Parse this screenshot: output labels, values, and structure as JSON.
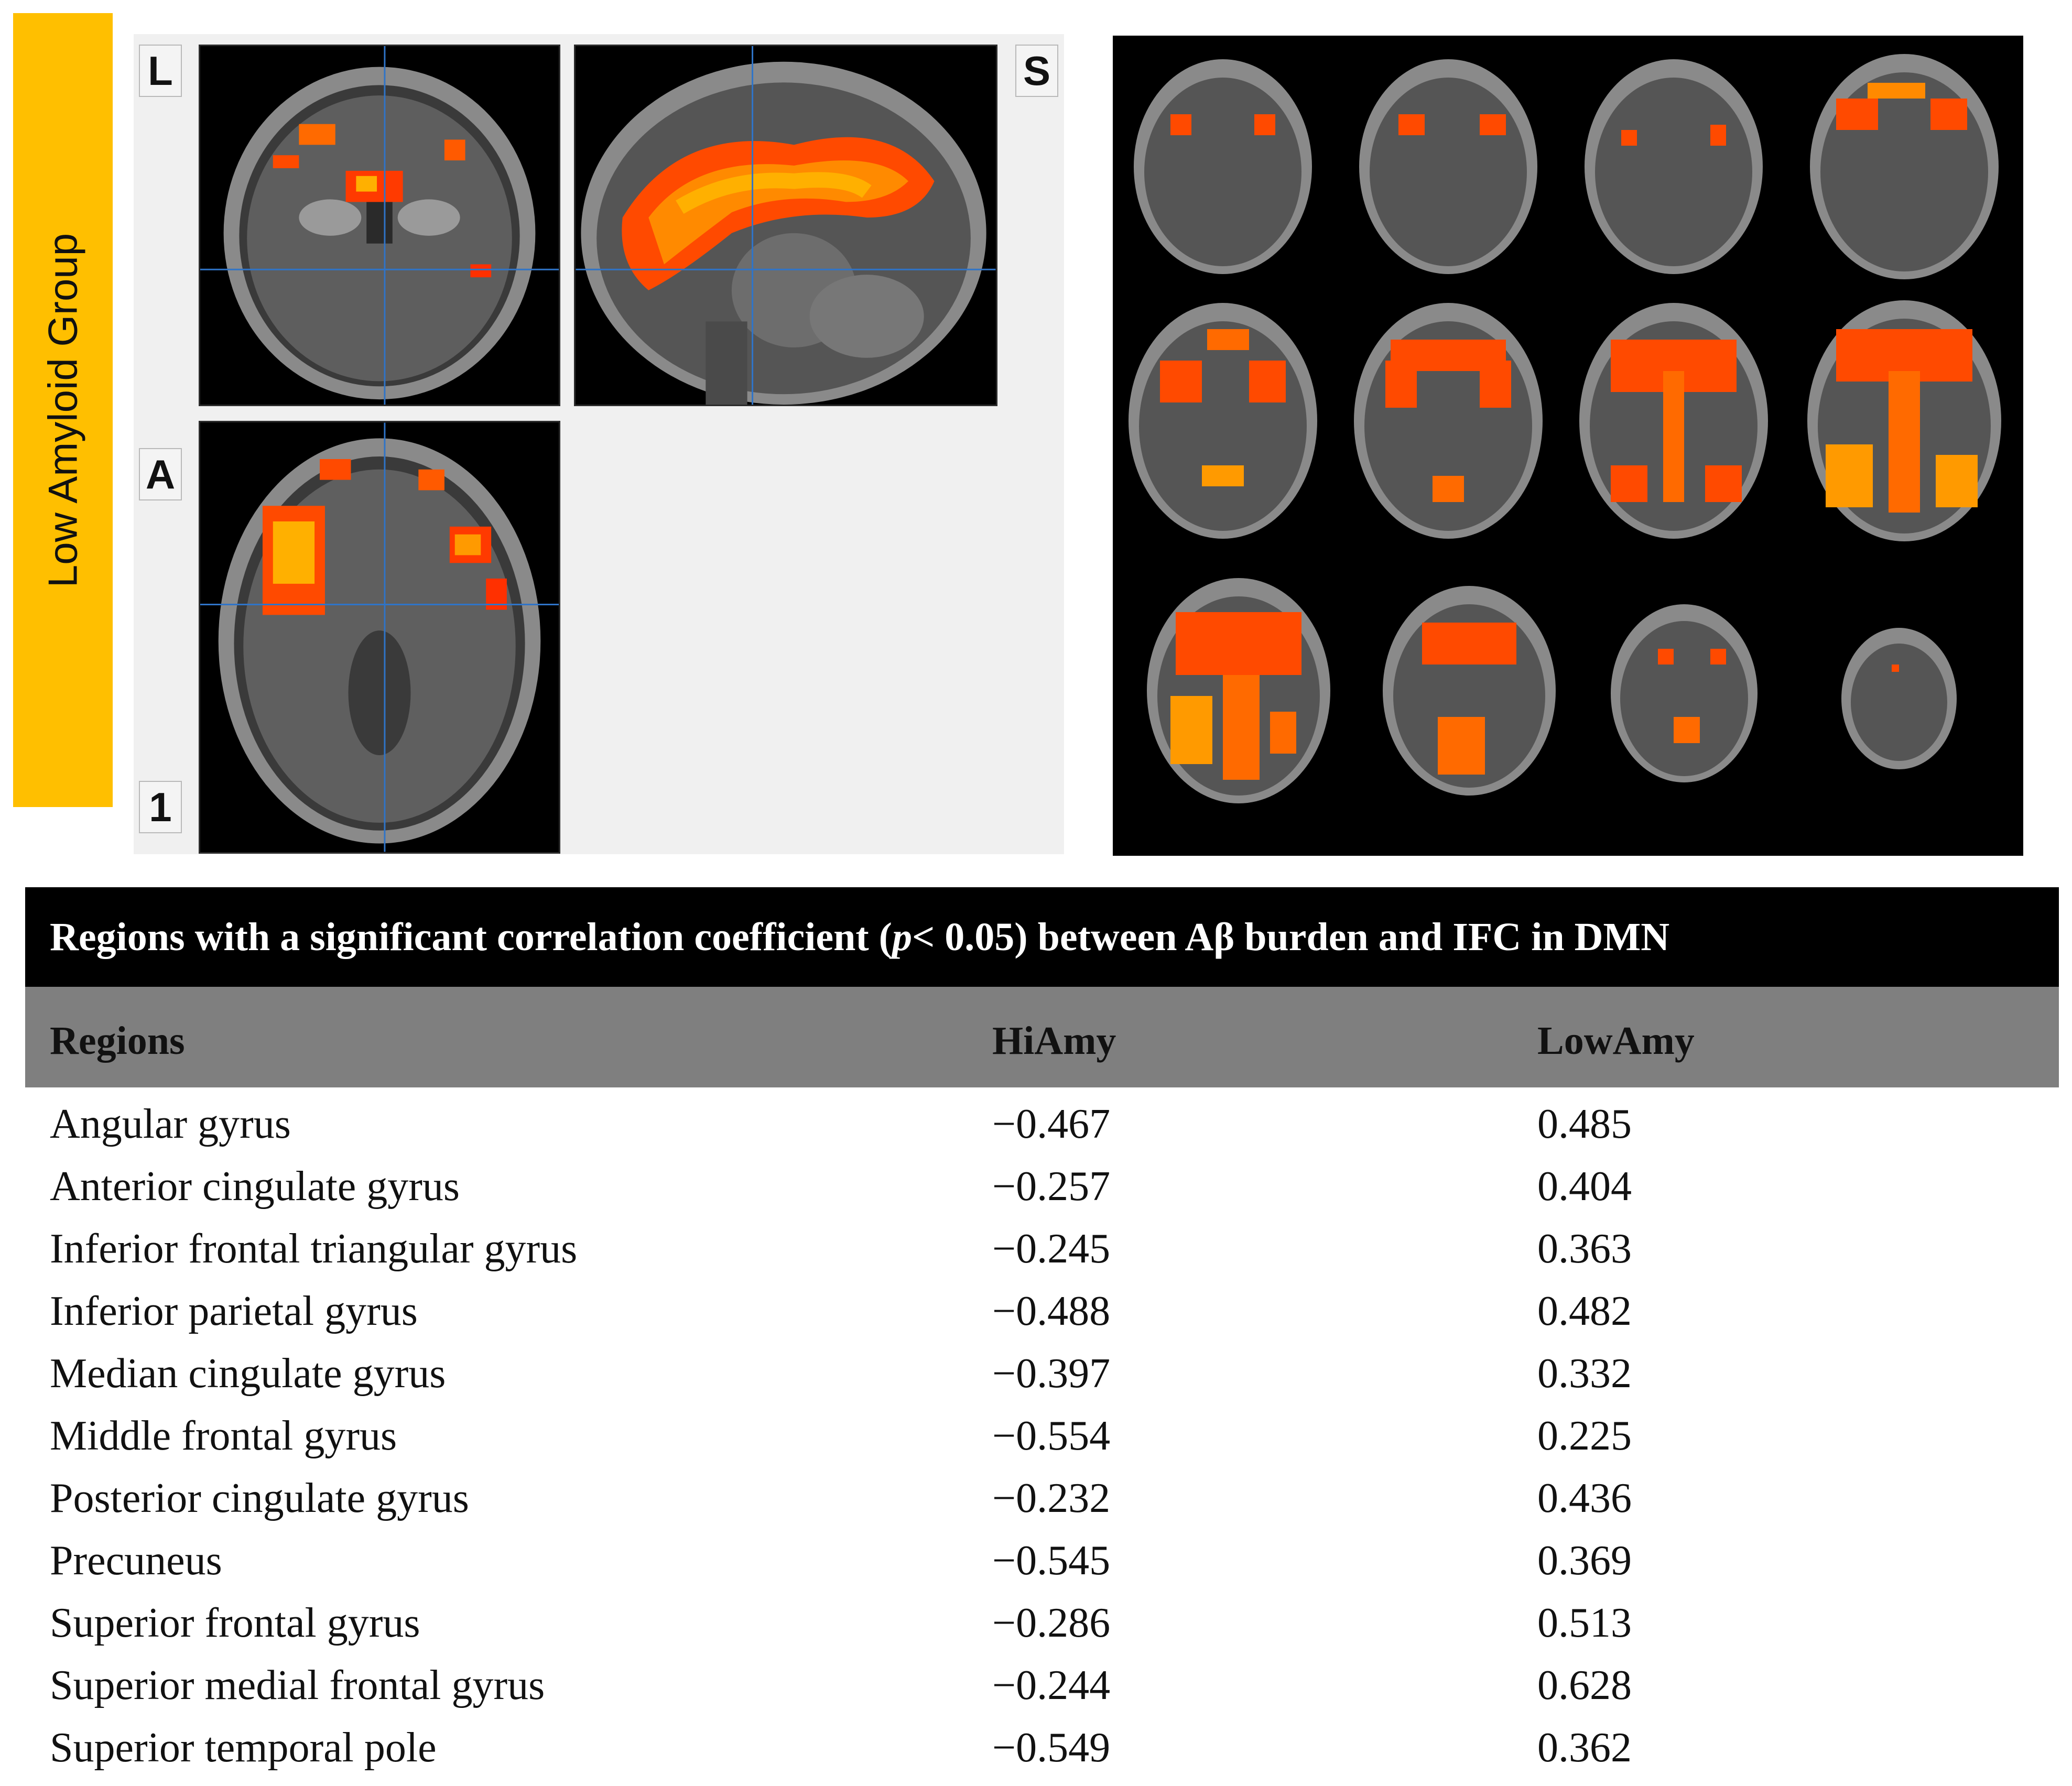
{
  "side_label": "Low Amyloid Group",
  "orientation_labels": {
    "coronal": "L",
    "sagittal": "S",
    "axial": "A",
    "slice_number": "1"
  },
  "colors": {
    "side_label_bg": "#ffbf00",
    "table_title_bg": "#000000",
    "table_header_bg": "#7f7f7f",
    "crosshair": "#2f74c8",
    "activation": [
      "#ff2a00",
      "#ff6a00",
      "#ffb000"
    ]
  },
  "table": {
    "title_before": "Regions with a significant correlation coefficient (",
    "title_p": "p",
    "title_after": " < 0.05) between Aβ burden and IFC in DMN",
    "columns": [
      "Regions",
      "HiAmy",
      "LowAmy"
    ],
    "rows": [
      [
        "Angular gyrus",
        "−0.467",
        "0.485"
      ],
      [
        "Anterior cingulate gyrus",
        "−0.257",
        "0.404"
      ],
      [
        "Inferior frontal triangular gyrus",
        "−0.245",
        "0.363"
      ],
      [
        "Inferior parietal gyrus",
        "−0.488",
        "0.482"
      ],
      [
        "Median cingulate gyrus",
        "−0.397",
        "0.332"
      ],
      [
        "Middle frontal gyrus",
        "−0.554",
        "0.225"
      ],
      [
        "Posterior cingulate gyrus",
        "−0.232",
        "0.436"
      ],
      [
        "Precuneus",
        "−0.545",
        "0.369"
      ],
      [
        "Superior frontal gyrus",
        "−0.286",
        "0.513"
      ],
      [
        "Superior medial frontal gyrus",
        "−0.244",
        "0.628"
      ],
      [
        "Superior temporal pole",
        "−0.549",
        "0.362"
      ]
    ]
  }
}
